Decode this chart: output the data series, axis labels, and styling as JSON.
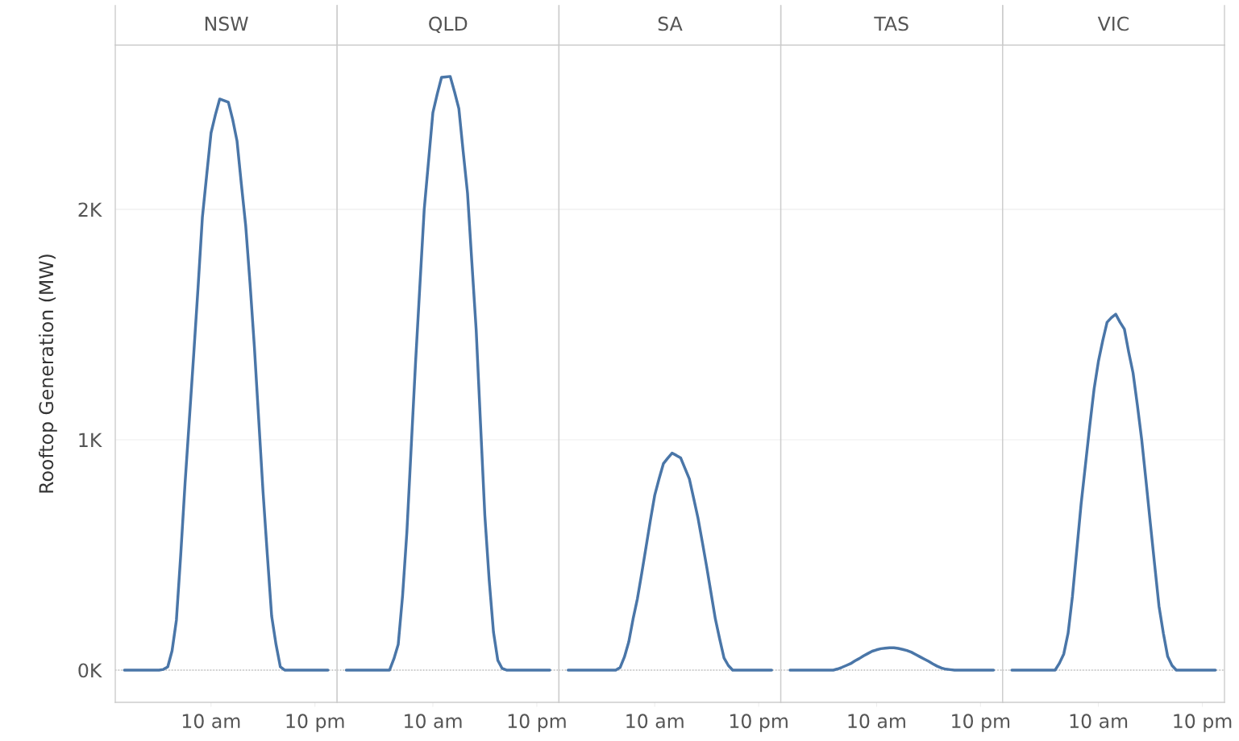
{
  "chart_data": [
    {
      "type": "line",
      "title": "NSW",
      "ylabel": "Rooftop Generation (MW)",
      "color": "#4a76a8",
      "ylim": [
        -140,
        2713
      ],
      "yticks": [
        {
          "value": 0,
          "label": "0K"
        },
        {
          "value": 1000,
          "label": "1K"
        },
        {
          "value": 2000,
          "label": "2K"
        }
      ],
      "grid": "y",
      "ref_lines": [
        {
          "axis": "y",
          "value": 0,
          "line_style": "dotted",
          "color": "#bbbbbb"
        }
      ],
      "categories": [
        null,
        null,
        null,
        null,
        null,
        null,
        null,
        null,
        null,
        null,
        null,
        null,
        null,
        null,
        null,
        null,
        null,
        null,
        null,
        null,
        "10 am",
        null,
        null,
        null,
        null,
        null,
        null,
        null,
        null,
        null,
        null,
        null,
        null,
        null,
        null,
        null,
        null,
        null,
        null,
        null,
        null,
        null,
        null,
        null,
        "10 pm",
        null,
        null,
        null
      ],
      "values": [
        0,
        0,
        0,
        0,
        0,
        0,
        0,
        0,
        0,
        3,
        14,
        84,
        217,
        500,
        811,
        1090,
        1371,
        1660,
        1965,
        2150,
        2332,
        2410,
        2479,
        2472,
        2465,
        2390,
        2297,
        2110,
        1930,
        1680,
        1406,
        1090,
        776,
        500,
        234,
        112,
        14,
        0,
        0,
        0,
        0,
        0,
        0,
        0,
        0,
        0,
        0,
        0
      ]
    },
    {
      "type": "line",
      "title": "QLD",
      "color": "#4a76a8",
      "ylim": [
        -140,
        2713
      ],
      "yticks": [
        0,
        1000,
        2000
      ],
      "grid": "y",
      "tick_labels": "x",
      "ref_lines": [
        {
          "axis": "y",
          "value": 0,
          "line_style": "dotted",
          "color": "#bbbbbb"
        }
      ],
      "categories": [
        null,
        null,
        null,
        null,
        null,
        null,
        null,
        null,
        null,
        null,
        null,
        null,
        null,
        null,
        null,
        null,
        null,
        null,
        null,
        null,
        "10 am",
        null,
        null,
        null,
        null,
        null,
        null,
        null,
        null,
        null,
        null,
        null,
        null,
        null,
        null,
        null,
        null,
        null,
        null,
        null,
        null,
        null,
        null,
        null,
        "10 pm",
        null,
        null,
        null
      ],
      "values": [
        0,
        0,
        0,
        0,
        0,
        0,
        0,
        0,
        0,
        0,
        0,
        49,
        112,
        322,
        601,
        970,
        1336,
        1670,
        2000,
        2210,
        2420,
        2500,
        2573,
        2575,
        2577,
        2510,
        2437,
        2250,
        2070,
        1770,
        1476,
        1070,
        671,
        392,
        164,
        42,
        7,
        0,
        0,
        0,
        0,
        0,
        0,
        0,
        0,
        0,
        0,
        0
      ]
    },
    {
      "type": "line",
      "title": "SA",
      "color": "#4a76a8",
      "ylim": [
        -140,
        2713
      ],
      "yticks": [
        0,
        1000,
        2000
      ],
      "grid": "y",
      "tick_labels": "x",
      "ref_lines": [
        {
          "axis": "y",
          "value": 0,
          "line_style": "dotted",
          "color": "#bbbbbb"
        }
      ],
      "categories": [
        null,
        null,
        null,
        null,
        null,
        null,
        null,
        null,
        null,
        null,
        null,
        null,
        null,
        null,
        null,
        null,
        null,
        null,
        null,
        null,
        "10 am",
        null,
        null,
        null,
        null,
        null,
        null,
        null,
        null,
        null,
        null,
        null,
        null,
        null,
        null,
        null,
        null,
        null,
        null,
        null,
        null,
        null,
        null,
        null,
        "10 pm",
        null,
        null,
        null
      ],
      "values": [
        0,
        0,
        0,
        0,
        0,
        0,
        0,
        0,
        0,
        0,
        0,
        0,
        11,
        57,
        122,
        222,
        310,
        420,
        535,
        650,
        759,
        830,
        896,
        920,
        942,
        932,
        921,
        875,
        830,
        745,
        659,
        555,
        448,
        335,
        222,
        135,
        53,
        20,
        0,
        0,
        0,
        0,
        0,
        0,
        0,
        0,
        0,
        0
      ]
    },
    {
      "type": "line",
      "title": "TAS",
      "color": "#4a76a8",
      "ylim": [
        -140,
        2713
      ],
      "yticks": [
        0,
        1000,
        2000
      ],
      "grid": "y",
      "tick_labels": "x",
      "ref_lines": [
        {
          "axis": "y",
          "value": 0,
          "line_style": "dotted",
          "color": "#bbbbbb"
        }
      ],
      "categories": [
        null,
        null,
        null,
        null,
        null,
        null,
        null,
        null,
        null,
        null,
        null,
        null,
        null,
        null,
        null,
        null,
        null,
        null,
        null,
        null,
        "10 am",
        null,
        null,
        null,
        null,
        null,
        null,
        null,
        null,
        null,
        null,
        null,
        null,
        null,
        null,
        null,
        null,
        null,
        null,
        null,
        null,
        null,
        null,
        null,
        "10 pm",
        null,
        null,
        null
      ],
      "values": [
        0,
        0,
        0,
        0,
        0,
        0,
        0,
        0,
        0,
        0,
        0,
        5,
        12,
        20,
        28,
        40,
        50,
        62,
        72,
        82,
        88,
        93,
        95,
        97,
        97,
        94,
        90,
        85,
        78,
        68,
        58,
        48,
        38,
        27,
        17,
        9,
        4,
        2,
        0,
        0,
        0,
        0,
        0,
        0,
        0,
        0,
        0,
        0
      ]
    },
    {
      "type": "line",
      "title": "VIC",
      "color": "#4a76a8",
      "ylim": [
        -140,
        2713
      ],
      "yticks": [
        0,
        1000,
        2000
      ],
      "grid": "y",
      "tick_labels": "x",
      "ref_lines": [
        {
          "axis": "y",
          "value": 0,
          "line_style": "dotted",
          "color": "#bbbbbb"
        }
      ],
      "categories": [
        null,
        null,
        null,
        null,
        null,
        null,
        null,
        null,
        null,
        null,
        null,
        null,
        null,
        null,
        null,
        null,
        null,
        null,
        null,
        null,
        "10 am",
        null,
        null,
        null,
        null,
        null,
        null,
        null,
        null,
        null,
        null,
        null,
        null,
        null,
        null,
        null,
        null,
        null,
        null,
        null,
        null,
        null,
        null,
        null,
        "10 pm",
        null,
        null,
        null
      ],
      "values": [
        0,
        0,
        0,
        0,
        0,
        0,
        0,
        0,
        0,
        0,
        0,
        30,
        70,
        160,
        320,
        520,
        720,
        890,
        1060,
        1220,
        1340,
        1430,
        1510,
        1530,
        1545,
        1510,
        1480,
        1380,
        1290,
        1150,
        1000,
        820,
        636,
        455,
        276,
        160,
        59,
        20,
        0,
        0,
        0,
        0,
        0,
        0,
        0,
        0,
        0,
        0
      ]
    }
  ]
}
